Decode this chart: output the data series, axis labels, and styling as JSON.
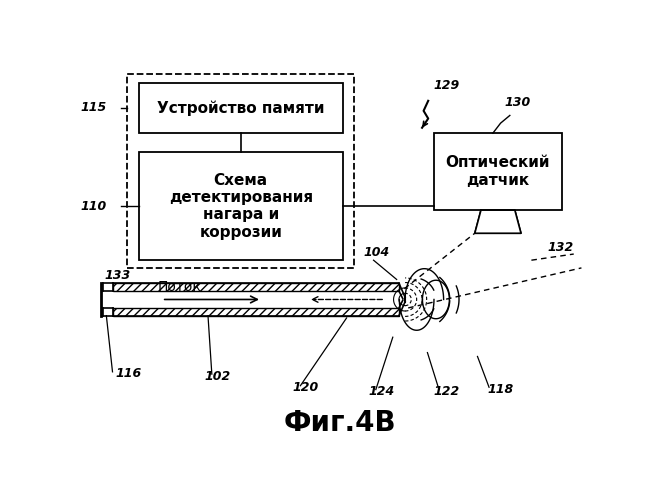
{
  "title": "Фиг.4В",
  "bg_color": "#ffffff",
  "box_memory_text": "Устройство памяти",
  "box_detect_text": "Схема\nдетектирования\nнагара и\nкоррозии",
  "box_optical_text": "Оптический\nдатчик",
  "label_115": "115",
  "label_110": "110",
  "label_133": "133",
  "label_129": "129",
  "label_130": "130",
  "label_132": "132",
  "label_104": "104",
  "label_102": "102",
  "label_116": "116",
  "label_120": "120",
  "label_124": "124",
  "label_122": "122",
  "label_118": "118",
  "label_flow": "Поток"
}
